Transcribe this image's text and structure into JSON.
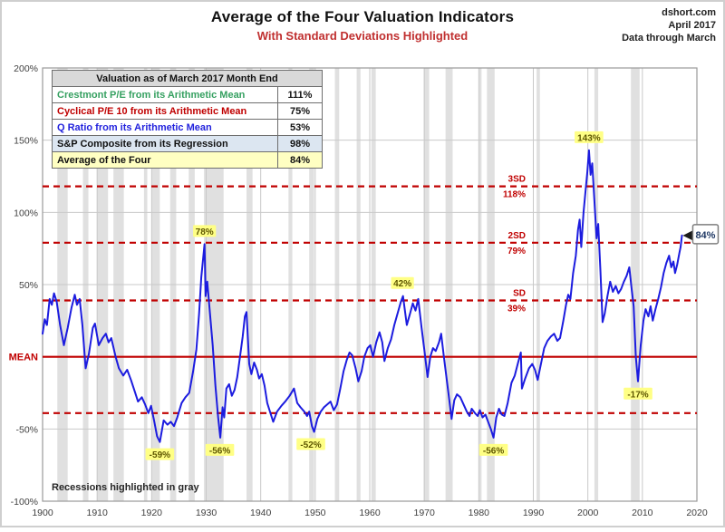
{
  "header": {
    "title": "Average of the Four Valuation Indicators",
    "subtitle": "With Standard Deviations Highlighted",
    "source_lines": [
      "dshort.com",
      "April 2017",
      "Data through March"
    ]
  },
  "legend_table": {
    "header": "Valuation as of March 2017 Month End",
    "rows": [
      {
        "label": "Crestmont P/E from its Arithmetic Mean",
        "value": "111%",
        "color": "#35a060",
        "bg": "#ffffff"
      },
      {
        "label": "Cyclical P/E 10 from its Arithmetic Mean",
        "value": "75%",
        "color": "#c00000",
        "bg": "#ffffff"
      },
      {
        "label": "Q Ratio from its Arithmetic Mean",
        "value": "53%",
        "color": "#2222dd",
        "bg": "#ffffff"
      },
      {
        "label": "S&P Composite from its Regression",
        "value": "98%",
        "color": "#111111",
        "bg": "#dce6f1"
      },
      {
        "label": "Average of the Four",
        "value": "84%",
        "color": "#111111",
        "bg": "#ffffc2"
      }
    ]
  },
  "chart_data": {
    "type": "line",
    "title": "Average of the Four Valuation Indicators",
    "footnote": "Recessions highlighted in gray",
    "colors": {
      "series": "#1c1cdf",
      "red": "#c00000",
      "grid": "#c9c9c9",
      "recession": "#e0e0e0",
      "border": "#9a9a9a",
      "annotation_bg": "#ffff85",
      "annotation_text": "#5e5600",
      "callout_text": "#1f3864"
    },
    "x_axis": {
      "min": 1900,
      "max": 2020,
      "ticks": [
        1900,
        1910,
        1920,
        1930,
        1940,
        1950,
        1960,
        1970,
        1980,
        1990,
        2000,
        2010,
        2020
      ]
    },
    "y_axis": {
      "min": -100,
      "max": 200,
      "mean_label": "MEAN",
      "mean_value": 0,
      "ticks": [
        {
          "v": 200,
          "label": "200%"
        },
        {
          "v": 150,
          "label": "150%"
        },
        {
          "v": 100,
          "label": "100%"
        },
        {
          "v": 50,
          "label": "50%"
        },
        {
          "v": -50,
          "label": "-50%"
        },
        {
          "v": -100,
          "label": "-100%"
        }
      ]
    },
    "sd_lines": [
      {
        "v": 118,
        "name": "3SD",
        "pct": "118%"
      },
      {
        "v": 79,
        "name": "2SD",
        "pct": "79%"
      },
      {
        "v": 39,
        "name": "SD",
        "pct": "39%"
      },
      {
        "v": -39,
        "name": "",
        "pct": ""
      }
    ],
    "annotations": [
      {
        "year": 1929.7,
        "value": 78,
        "label": "78%",
        "place": "above"
      },
      {
        "year": 1966.0,
        "value": 42,
        "label": "42%",
        "place": "above"
      },
      {
        "year": 2000.2,
        "value": 143,
        "label": "143%",
        "place": "above"
      },
      {
        "year": 1921.5,
        "value": -59,
        "label": "-59%",
        "place": "below"
      },
      {
        "year": 1932.5,
        "value": -56,
        "label": "-56%",
        "place": "below"
      },
      {
        "year": 1949.2,
        "value": -52,
        "label": "-52%",
        "place": "below"
      },
      {
        "year": 1982.7,
        "value": -56,
        "label": "-56%",
        "place": "below"
      },
      {
        "year": 2009.2,
        "value": -17,
        "label": "-17%",
        "place": "below"
      }
    ],
    "callout": {
      "label": "84%",
      "year": 2017.25,
      "value": 84
    },
    "recessions": [
      [
        1902.7,
        1904.6
      ],
      [
        1907.4,
        1908.4
      ],
      [
        1910.0,
        1912.0
      ],
      [
        1913.0,
        1914.9
      ],
      [
        1918.6,
        1919.2
      ],
      [
        1920.0,
        1921.5
      ],
      [
        1923.4,
        1924.5
      ],
      [
        1926.8,
        1927.9
      ],
      [
        1929.6,
        1933.2
      ],
      [
        1937.4,
        1938.5
      ],
      [
        1945.1,
        1945.8
      ],
      [
        1948.9,
        1949.8
      ],
      [
        1953.6,
        1954.4
      ],
      [
        1957.6,
        1958.3
      ],
      [
        1960.3,
        1961.1
      ],
      [
        1969.9,
        1970.9
      ],
      [
        1973.9,
        1975.2
      ],
      [
        1980.0,
        1980.5
      ],
      [
        1981.5,
        1982.9
      ],
      [
        1990.6,
        1991.2
      ],
      [
        2001.2,
        2001.9
      ],
      [
        2007.9,
        2009.5
      ]
    ],
    "series": {
      "name": "Average of the four valuation indicators",
      "points": [
        [
          1900.0,
          16
        ],
        [
          1900.4,
          26
        ],
        [
          1900.8,
          22
        ],
        [
          1901.3,
          40
        ],
        [
          1901.7,
          36
        ],
        [
          1902.1,
          44
        ],
        [
          1902.6,
          38
        ],
        [
          1903.2,
          22
        ],
        [
          1903.9,
          8
        ],
        [
          1904.6,
          20
        ],
        [
          1905.3,
          34
        ],
        [
          1905.9,
          43
        ],
        [
          1906.3,
          36
        ],
        [
          1906.8,
          40
        ],
        [
          1907.3,
          22
        ],
        [
          1907.9,
          -8
        ],
        [
          1908.5,
          2
        ],
        [
          1909.2,
          20
        ],
        [
          1909.6,
          23
        ],
        [
          1910.3,
          8
        ],
        [
          1911.0,
          13
        ],
        [
          1911.6,
          16
        ],
        [
          1912.1,
          10
        ],
        [
          1912.6,
          13
        ],
        [
          1913.4,
          0
        ],
        [
          1914.0,
          -8
        ],
        [
          1914.8,
          -13
        ],
        [
          1915.5,
          -9
        ],
        [
          1916.2,
          -16
        ],
        [
          1916.9,
          -24
        ],
        [
          1917.5,
          -31
        ],
        [
          1918.2,
          -28
        ],
        [
          1918.8,
          -33
        ],
        [
          1919.4,
          -39
        ],
        [
          1919.9,
          -34
        ],
        [
          1920.5,
          -45
        ],
        [
          1921.0,
          -55
        ],
        [
          1921.5,
          -59
        ],
        [
          1922.2,
          -44
        ],
        [
          1922.9,
          -47
        ],
        [
          1923.5,
          -45
        ],
        [
          1924.1,
          -48
        ],
        [
          1924.7,
          -42
        ],
        [
          1925.5,
          -32
        ],
        [
          1926.2,
          -28
        ],
        [
          1926.9,
          -25
        ],
        [
          1927.6,
          -10
        ],
        [
          1928.2,
          5
        ],
        [
          1928.7,
          30
        ],
        [
          1929.1,
          55
        ],
        [
          1929.7,
          78
        ],
        [
          1929.9,
          42
        ],
        [
          1930.2,
          52
        ],
        [
          1930.7,
          30
        ],
        [
          1931.2,
          8
        ],
        [
          1931.7,
          -20
        ],
        [
          1932.2,
          -42
        ],
        [
          1932.6,
          -56
        ],
        [
          1933.0,
          -35
        ],
        [
          1933.3,
          -42
        ],
        [
          1933.7,
          -22
        ],
        [
          1934.2,
          -19
        ],
        [
          1934.7,
          -27
        ],
        [
          1935.2,
          -23
        ],
        [
          1935.7,
          -14
        ],
        [
          1936.2,
          0
        ],
        [
          1936.7,
          14
        ],
        [
          1937.1,
          28
        ],
        [
          1937.4,
          31
        ],
        [
          1937.9,
          -5
        ],
        [
          1938.3,
          -12
        ],
        [
          1938.8,
          -4
        ],
        [
          1939.3,
          -9
        ],
        [
          1939.7,
          -15
        ],
        [
          1940.2,
          -12
        ],
        [
          1940.7,
          -20
        ],
        [
          1941.2,
          -32
        ],
        [
          1941.7,
          -38
        ],
        [
          1942.3,
          -45
        ],
        [
          1943.0,
          -38
        ],
        [
          1943.8,
          -34
        ],
        [
          1944.5,
          -31
        ],
        [
          1945.3,
          -27
        ],
        [
          1946.1,
          -22
        ],
        [
          1946.7,
          -32
        ],
        [
          1947.3,
          -35
        ],
        [
          1948.0,
          -38
        ],
        [
          1948.5,
          -41
        ],
        [
          1948.9,
          -38
        ],
        [
          1949.4,
          -48
        ],
        [
          1949.8,
          -52
        ],
        [
          1950.4,
          -43
        ],
        [
          1951.0,
          -38
        ],
        [
          1951.6,
          -35
        ],
        [
          1952.2,
          -33
        ],
        [
          1952.8,
          -31
        ],
        [
          1953.4,
          -37
        ],
        [
          1954.0,
          -33
        ],
        [
          1954.6,
          -22
        ],
        [
          1955.2,
          -10
        ],
        [
          1955.8,
          -2
        ],
        [
          1956.3,
          3
        ],
        [
          1956.8,
          1
        ],
        [
          1957.4,
          -8
        ],
        [
          1957.9,
          -17
        ],
        [
          1958.5,
          -10
        ],
        [
          1959.0,
          0
        ],
        [
          1959.6,
          6
        ],
        [
          1960.1,
          8
        ],
        [
          1960.6,
          0
        ],
        [
          1961.2,
          10
        ],
        [
          1961.8,
          17
        ],
        [
          1962.3,
          10
        ],
        [
          1962.7,
          -3
        ],
        [
          1963.3,
          6
        ],
        [
          1963.9,
          12
        ],
        [
          1964.5,
          22
        ],
        [
          1965.1,
          30
        ],
        [
          1965.7,
          38
        ],
        [
          1966.1,
          42
        ],
        [
          1966.8,
          22
        ],
        [
          1967.4,
          30
        ],
        [
          1967.9,
          37
        ],
        [
          1968.4,
          32
        ],
        [
          1968.9,
          40
        ],
        [
          1969.5,
          20
        ],
        [
          1970.0,
          5
        ],
        [
          1970.6,
          -14
        ],
        [
          1971.1,
          0
        ],
        [
          1971.6,
          6
        ],
        [
          1972.1,
          4
        ],
        [
          1972.7,
          10
        ],
        [
          1973.1,
          16
        ],
        [
          1973.6,
          0
        ],
        [
          1974.1,
          -15
        ],
        [
          1974.6,
          -30
        ],
        [
          1975.0,
          -43
        ],
        [
          1975.5,
          -30
        ],
        [
          1976.0,
          -26
        ],
        [
          1976.6,
          -28
        ],
        [
          1977.2,
          -33
        ],
        [
          1977.8,
          -38
        ],
        [
          1978.3,
          -41
        ],
        [
          1978.7,
          -36
        ],
        [
          1979.3,
          -39
        ],
        [
          1979.8,
          -41
        ],
        [
          1980.2,
          -37
        ],
        [
          1980.7,
          -42
        ],
        [
          1981.2,
          -40
        ],
        [
          1981.7,
          -45
        ],
        [
          1982.2,
          -50
        ],
        [
          1982.7,
          -56
        ],
        [
          1983.2,
          -42
        ],
        [
          1983.7,
          -36
        ],
        [
          1984.2,
          -40
        ],
        [
          1984.7,
          -41
        ],
        [
          1985.3,
          -32
        ],
        [
          1986.0,
          -18
        ],
        [
          1986.6,
          -13
        ],
        [
          1987.2,
          -4
        ],
        [
          1987.7,
          3
        ],
        [
          1987.9,
          -22
        ],
        [
          1988.5,
          -15
        ],
        [
          1989.2,
          -8
        ],
        [
          1989.8,
          -5
        ],
        [
          1990.3,
          -9
        ],
        [
          1990.8,
          -16
        ],
        [
          1991.4,
          -5
        ],
        [
          1992.0,
          6
        ],
        [
          1992.6,
          11
        ],
        [
          1993.2,
          14
        ],
        [
          1993.8,
          16
        ],
        [
          1994.4,
          11
        ],
        [
          1994.9,
          13
        ],
        [
          1995.5,
          25
        ],
        [
          1996.0,
          36
        ],
        [
          1996.4,
          43
        ],
        [
          1996.8,
          40
        ],
        [
          1997.3,
          58
        ],
        [
          1997.8,
          70
        ],
        [
          1998.2,
          88
        ],
        [
          1998.5,
          95
        ],
        [
          1998.8,
          76
        ],
        [
          1999.2,
          100
        ],
        [
          1999.5,
          112
        ],
        [
          1999.9,
          128
        ],
        [
          2000.2,
          143
        ],
        [
          2000.5,
          126
        ],
        [
          2000.8,
          134
        ],
        [
          2001.2,
          108
        ],
        [
          2001.6,
          82
        ],
        [
          2001.9,
          92
        ],
        [
          2002.3,
          60
        ],
        [
          2002.7,
          24
        ],
        [
          2003.1,
          30
        ],
        [
          2003.6,
          42
        ],
        [
          2004.1,
          52
        ],
        [
          2004.6,
          45
        ],
        [
          2005.1,
          49
        ],
        [
          2005.6,
          44
        ],
        [
          2006.1,
          47
        ],
        [
          2006.6,
          52
        ],
        [
          2007.1,
          56
        ],
        [
          2007.6,
          62
        ],
        [
          2008.0,
          48
        ],
        [
          2008.4,
          35
        ],
        [
          2008.8,
          0
        ],
        [
          2009.2,
          -17
        ],
        [
          2009.7,
          8
        ],
        [
          2010.2,
          25
        ],
        [
          2010.6,
          33
        ],
        [
          2011.1,
          28
        ],
        [
          2011.5,
          35
        ],
        [
          2011.9,
          25
        ],
        [
          2012.4,
          33
        ],
        [
          2012.9,
          40
        ],
        [
          2013.4,
          48
        ],
        [
          2013.9,
          58
        ],
        [
          2014.4,
          65
        ],
        [
          2014.9,
          70
        ],
        [
          2015.3,
          62
        ],
        [
          2015.7,
          66
        ],
        [
          2016.0,
          58
        ],
        [
          2016.4,
          64
        ],
        [
          2016.8,
          72
        ],
        [
          2017.0,
          76
        ],
        [
          2017.25,
          84
        ]
      ]
    }
  }
}
